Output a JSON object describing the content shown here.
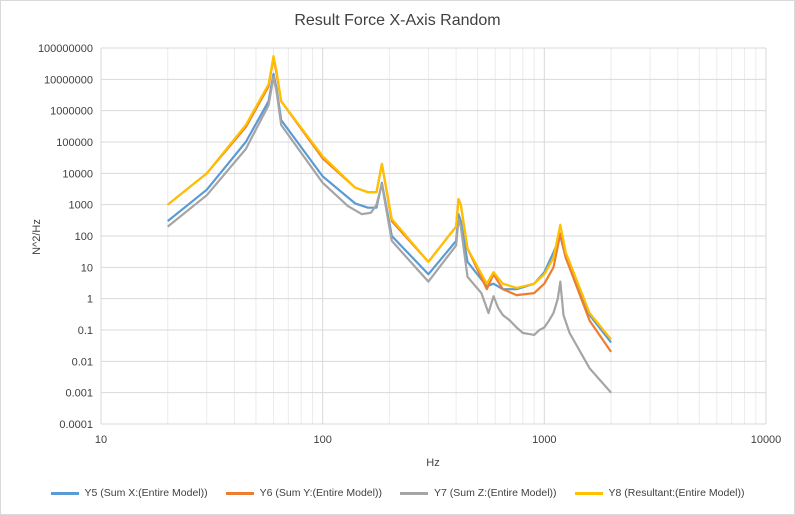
{
  "chart_data": {
    "type": "line",
    "title": "Result Force X-Axis Random",
    "xlabel": "Hz",
    "ylabel": "N^2/Hz",
    "xscale": "log",
    "yscale": "log",
    "xlim": [
      10,
      10000
    ],
    "ylim": [
      0.0001,
      100000000
    ],
    "x_ticks": [
      "10",
      "100",
      "1000",
      "10000"
    ],
    "y_ticks": [
      "0.0001",
      "0.001",
      "0.01",
      "0.1",
      "1",
      "10",
      "100",
      "1000",
      "10000",
      "100000",
      "1000000",
      "10000000",
      "100000000"
    ],
    "grid": true,
    "legend_position": "bottom",
    "series": [
      {
        "name": "Y5 (Sum X:(Entire Model))",
        "color": "#5b9bd5",
        "x": [
          20,
          30,
          45,
          57,
          60,
          62,
          65,
          100,
          140,
          160,
          175,
          185,
          205,
          300,
          400,
          410,
          420,
          450,
          550,
          590,
          650,
          750,
          900,
          1000,
          1100,
          1180,
          1250,
          1600,
          2000
        ],
        "y": [
          300,
          3000,
          100000,
          2000000,
          15000000,
          5000000,
          500000,
          8000,
          1100,
          800,
          800,
          5000,
          100,
          6,
          70,
          500,
          300,
          15,
          2.5,
          3,
          2,
          2,
          3,
          7,
          30,
          100,
          20,
          0.3,
          0.04
        ]
      },
      {
        "name": "Y6 (Sum Y:(Entire Model))",
        "color": "#ed7d31",
        "x": [
          20,
          30,
          45,
          57,
          60,
          62,
          65,
          100,
          140,
          160,
          175,
          185,
          205,
          300,
          400,
          410,
          420,
          450,
          550,
          590,
          650,
          750,
          900,
          1000,
          1100,
          1180,
          1250,
          1600,
          2000
        ],
        "y": [
          1000,
          10000,
          300000,
          6000000,
          50000000,
          15000000,
          2000000,
          30000,
          3500,
          2500,
          2500,
          20000,
          300,
          15,
          200,
          1500,
          1000,
          40,
          2,
          6,
          2,
          1.3,
          1.5,
          3,
          10,
          120,
          20,
          0.2,
          0.02
        ]
      },
      {
        "name": "Y7 (Sum Z:(Entire Model))",
        "color": "#a5a5a5",
        "x": [
          20,
          30,
          45,
          57,
          60,
          62,
          65,
          100,
          130,
          150,
          165,
          175,
          185,
          205,
          300,
          400,
          410,
          420,
          450,
          520,
          560,
          590,
          620,
          650,
          700,
          750,
          800,
          850,
          900,
          950,
          1000,
          1050,
          1100,
          1150,
          1180,
          1220,
          1300,
          1600,
          2000
        ],
        "y": [
          200,
          2000,
          60000,
          1500000,
          12000000,
          4000000,
          350000,
          5000,
          900,
          500,
          550,
          1000,
          4500,
          70,
          3.5,
          50,
          350,
          200,
          5,
          1.5,
          0.35,
          1.2,
          0.5,
          0.3,
          0.2,
          0.12,
          0.08,
          0.075,
          0.07,
          0.1,
          0.12,
          0.2,
          0.35,
          1,
          3.5,
          0.3,
          0.08,
          0.006,
          0.001
        ]
      },
      {
        "name": "Y8 (Resultant:(Entire Model))",
        "color": "#ffc000",
        "x": [
          20,
          30,
          45,
          57,
          60,
          62,
          65,
          100,
          140,
          160,
          175,
          185,
          205,
          300,
          400,
          410,
          420,
          450,
          550,
          590,
          650,
          750,
          900,
          1000,
          1100,
          1180,
          1250,
          1600,
          2000
        ],
        "y": [
          1000,
          10000,
          350000,
          7000000,
          55000000,
          18000000,
          2000000,
          35000,
          3500,
          2500,
          2500,
          20000,
          350,
          15,
          200,
          1500,
          1000,
          40,
          3,
          7,
          3,
          2.2,
          3,
          6,
          20,
          230,
          30,
          0.35,
          0.05
        ]
      }
    ]
  }
}
